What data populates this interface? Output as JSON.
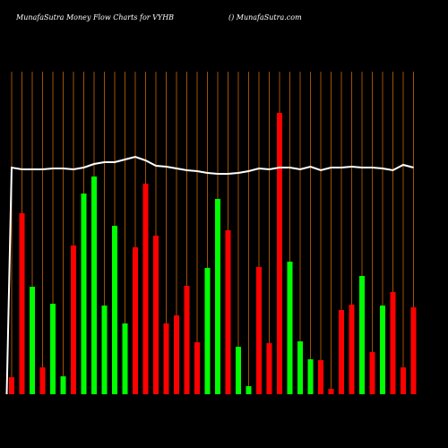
{
  "chart_data": {
    "type": "bar",
    "title": "MunafaSutra  Money Flow  Charts for VYHB",
    "subtitle": "() MunafaSutra.com",
    "categories": [
      null,
      null,
      null,
      null,
      null,
      null,
      null,
      null,
      null,
      null,
      null,
      null,
      null,
      null,
      null,
      null,
      null,
      null,
      null,
      null,
      null,
      null,
      null,
      null,
      null,
      null,
      null,
      null,
      null,
      null,
      null,
      null,
      null,
      null,
      null,
      null,
      null,
      null,
      null,
      null
    ],
    "values": [
      19,
      202,
      120,
      30,
      101,
      20,
      166,
      224,
      243,
      99,
      188,
      79,
      164,
      235,
      177,
      79,
      88,
      121,
      58,
      141,
      218,
      183,
      53,
      9,
      142,
      57,
      314,
      148,
      59,
      39,
      38,
      6,
      94,
      100,
      132,
      47,
      99,
      114,
      30,
      97
    ],
    "bar_colors": [
      "#ff0000",
      "#ff0000",
      "#00ff00",
      "#ff0000",
      "#00ff00",
      "#00ff00",
      "#ff0000",
      "#00ff00",
      "#00ff00",
      "#00ff00",
      "#00ff00",
      "#00ff00",
      "#ff0000",
      "#ff0000",
      "#ff0000",
      "#ff0000",
      "#ff0000",
      "#ff0000",
      "#ff0000",
      "#00ff00",
      "#00ff00",
      "#ff0000",
      "#00ff00",
      "#00ff00",
      "#ff0000",
      "#ff0000",
      "#ff0000",
      "#00ff00",
      "#00ff00",
      "#00ff00",
      "#ff0000",
      "#ff0000",
      "#ff0000",
      "#ff0000",
      "#00ff00",
      "#ff0000",
      "#00ff00",
      "#ff0000",
      "#ff0000",
      "#ff0000"
    ],
    "line": {
      "color": "#ffffff",
      "values": [
        253,
        251,
        251,
        251,
        252,
        252,
        251,
        253,
        257,
        259,
        259,
        262,
        265,
        261,
        255,
        254,
        252,
        250,
        249,
        247,
        246,
        246,
        247,
        249,
        252,
        251,
        253,
        253,
        251,
        254,
        250,
        253,
        253,
        254,
        253,
        253,
        252,
        250,
        256,
        253
      ]
    },
    "grid_color": "#cc6600",
    "ylim": [
      0,
      360
    ]
  }
}
